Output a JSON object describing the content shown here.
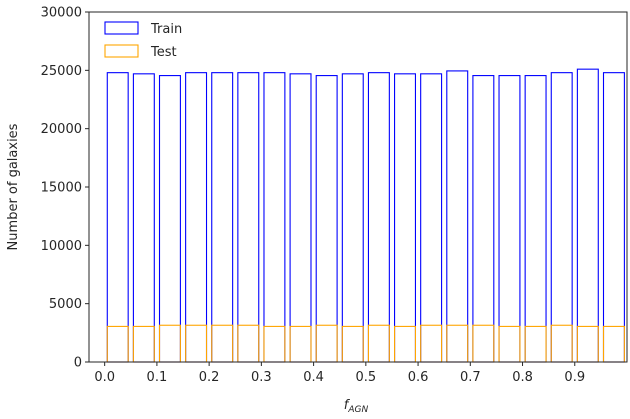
{
  "chart_data": {
    "type": "bar",
    "xlabel_main": "f",
    "xlabel_sub": "AGN",
    "ylabel": "Number of galaxies",
    "ylim": [
      0,
      30000
    ],
    "yticks": [
      0,
      5000,
      10000,
      15000,
      20000,
      25000,
      30000
    ],
    "xlim": [
      -0.03,
      1.0
    ],
    "xticks": [
      0.0,
      0.1,
      0.2,
      0.3,
      0.4,
      0.5,
      0.6,
      0.7,
      0.8,
      0.9
    ],
    "xtick_labels": [
      "0.0",
      "0.1",
      "0.2",
      "0.3",
      "0.4",
      "0.5",
      "0.6",
      "0.7",
      "0.8",
      "0.9"
    ],
    "bin_width": 0.05,
    "bin_starts": [
      0.0,
      0.05,
      0.1,
      0.15,
      0.2,
      0.25,
      0.3,
      0.35,
      0.4,
      0.45,
      0.5,
      0.55,
      0.6,
      0.65,
      0.7,
      0.75,
      0.8,
      0.85,
      0.9,
      0.95
    ],
    "legend_position": "upper-left",
    "series": [
      {
        "name": "Train",
        "color": "#0000ff",
        "values": [
          24800,
          24700,
          24550,
          24800,
          24800,
          24800,
          24800,
          24700,
          24550,
          24700,
          24800,
          24700,
          24700,
          24950,
          24550,
          24550,
          24550,
          24800,
          25100,
          24800
        ]
      },
      {
        "name": "Test",
        "color": "#ffa500",
        "values": [
          3050,
          3050,
          3150,
          3150,
          3150,
          3150,
          3050,
          3050,
          3150,
          3050,
          3150,
          3050,
          3150,
          3150,
          3150,
          3050,
          3050,
          3150,
          3050,
          3050
        ]
      }
    ]
  }
}
